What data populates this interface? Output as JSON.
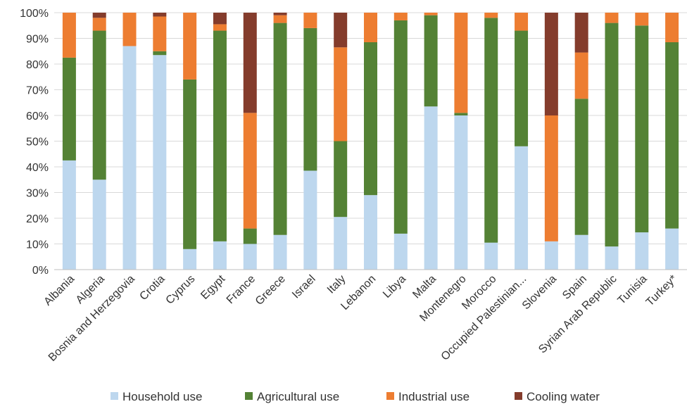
{
  "chart_data": {
    "type": "bar",
    "stacked": true,
    "title": "",
    "xlabel": "",
    "ylabel": "",
    "ylim": [
      0,
      100
    ],
    "yticks": [
      "0%",
      "10%",
      "20%",
      "30%",
      "40%",
      "50%",
      "60%",
      "70%",
      "80%",
      "90%",
      "100%"
    ],
    "grid": true,
    "legend_position": "bottom",
    "categories": [
      "Albania",
      "Algeria",
      "Bosnia and Herzegovia",
      "Crotia",
      "Cyprus",
      "Egypt",
      "France",
      "Greece",
      "Israel",
      "Italy",
      "Lebanon",
      "Libya",
      "Malta",
      "Montenegro",
      "Morocco",
      "Occupied Palestinian...",
      "Slovenia",
      "Spain",
      "Syrian Arab Republic",
      "Tunisia",
      "Turkey*"
    ],
    "series": [
      {
        "name": "Household use",
        "color": "#bdd7ee",
        "values": [
          42.5,
          35,
          87,
          83.5,
          8,
          11,
          10,
          13.5,
          38.5,
          20.5,
          29,
          14,
          63.5,
          60,
          10.5,
          48,
          11,
          13.5,
          9,
          14.5,
          16
        ]
      },
      {
        "name": "Agricultural use",
        "color": "#548235",
        "values": [
          40,
          58,
          0,
          1.5,
          66,
          82,
          6,
          82.5,
          55.5,
          29.5,
          59.5,
          83,
          35.5,
          1,
          87.5,
          45,
          0,
          53,
          87,
          80.5,
          72.5
        ]
      },
      {
        "name": "Industrial use",
        "color": "#ed7d31",
        "values": [
          17.5,
          5,
          13,
          13.5,
          26,
          2.5,
          45,
          3,
          6,
          36.5,
          11.5,
          3,
          1,
          39,
          2,
          7,
          49,
          18,
          4,
          5,
          11.5
        ]
      },
      {
        "name": "Cooling water",
        "color": "#843c2c",
        "values": [
          0,
          2,
          0,
          1.5,
          0,
          4.5,
          39,
          1,
          0,
          13.5,
          0,
          0,
          0,
          0,
          0,
          0,
          40,
          15.5,
          0,
          0,
          0
        ]
      }
    ]
  }
}
